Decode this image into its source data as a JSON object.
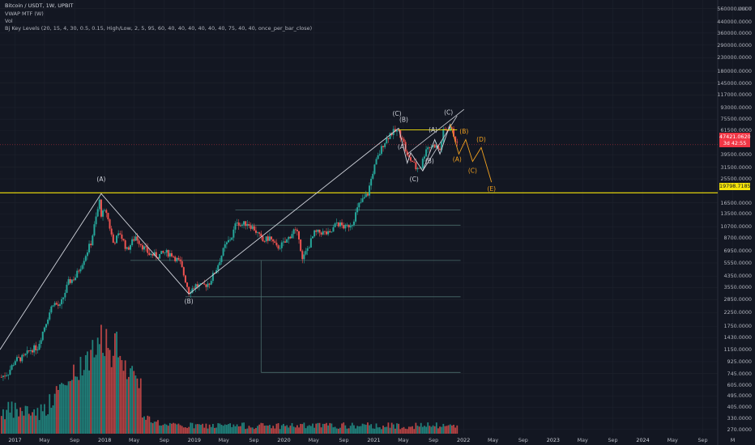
{
  "header": {
    "line1": "Bitcoin / USDT, 1W, UPBIT",
    "line2": "VWAP MTF (W)",
    "line3": "Vol",
    "line4": "Bj Key Levels (20, 15, 4, 30, 0.5, 0.15, High/Low, 2, 5, 95, 60, 40, 40, 40, 40, 40, 40, 75, 40, 40, once_per_bar_close)"
  },
  "y_axis": {
    "currency": "USDT",
    "labels": [
      "560000.0000",
      "440000.0000",
      "360000.0000",
      "290000.0000",
      "230000.0000",
      "180000.0000",
      "145000.0000",
      "117000.0000",
      "93000.0000",
      "75500.0000",
      "61500.0000",
      "39500.0000",
      "31500.0000",
      "25500.0000",
      "16500.0000",
      "13500.0000",
      "10700.0000",
      "8700.0000",
      "6950.0000",
      "5550.0000",
      "4350.0000",
      "3550.0000",
      "2850.0000",
      "2250.0000",
      "1750.0000",
      "1430.0000",
      "1150.0000",
      "925.0000",
      "745.0000",
      "605.0000",
      "495.0000",
      "405.0000",
      "330.0000",
      "270.0000"
    ]
  },
  "price_tag": {
    "price": "47421.0620",
    "countdown": "3d 42:55",
    "color": "#f23645"
  },
  "level_tag": {
    "value": "19798.7185",
    "color": "#f5e50a"
  },
  "x_axis": {
    "labels": [
      {
        "t": "2017",
        "year": true
      },
      {
        "t": "May",
        "year": false
      },
      {
        "t": "Sep",
        "year": false
      },
      {
        "t": "2018",
        "year": true
      },
      {
        "t": "May",
        "year": false
      },
      {
        "t": "Sep",
        "year": false
      },
      {
        "t": "2019",
        "year": true
      },
      {
        "t": "May",
        "year": false
      },
      {
        "t": "Sep",
        "year": false
      },
      {
        "t": "2020",
        "year": true
      },
      {
        "t": "May",
        "year": false
      },
      {
        "t": "Sep",
        "year": false
      },
      {
        "t": "2021",
        "year": true
      },
      {
        "t": "May",
        "year": false
      },
      {
        "t": "Sep",
        "year": false
      },
      {
        "t": "2022",
        "year": true
      },
      {
        "t": "May",
        "year": false
      },
      {
        "t": "Sep",
        "year": false
      },
      {
        "t": "2023",
        "year": true
      },
      {
        "t": "May",
        "year": false
      },
      {
        "t": "Sep",
        "year": false
      },
      {
        "t": "2024",
        "year": true
      },
      {
        "t": "May",
        "year": false
      },
      {
        "t": "Sep",
        "year": false
      },
      {
        "t": "M",
        "year": false
      }
    ]
  },
  "colors": {
    "bull": "#26a69a",
    "bear": "#ef5350",
    "level": "#f5e50a",
    "wave_white": "#d1d4dc",
    "wave_orange": "#f0a020",
    "grid": "#1e222d",
    "fib": "#6a8f8f"
  },
  "wave_labels": {
    "A1": "(A)",
    "B1": "(B)",
    "C_top": "(C)",
    "B_top": "(B)",
    "A_mid": "(A)",
    "C_low": "(C)",
    "B_mid": "(B)",
    "A_top2": "(A)",
    "C_top2": "(C)",
    "projection": [
      "(A)",
      "(B)",
      "(C)",
      "(D)",
      "(E)"
    ]
  },
  "chart_data": {
    "type": "candlestick",
    "title": "Bitcoin / USDT, 1W, UPBIT",
    "y_scale": "log",
    "ylim": [
      250,
      600000
    ],
    "x_range": [
      "2016-11",
      "2024-11"
    ],
    "key_level": 19798.7185,
    "last_price": 47421.062,
    "close_series": [
      {
        "d": "2016-11-07",
        "c": 700
      },
      {
        "d": "2016-12-05",
        "c": 760
      },
      {
        "d": "2017-01-02",
        "c": 950
      },
      {
        "d": "2017-02-06",
        "c": 1000
      },
      {
        "d": "2017-03-06",
        "c": 1150
      },
      {
        "d": "2017-04-03",
        "c": 1200
      },
      {
        "d": "2017-05-01",
        "c": 1750
      },
      {
        "d": "2017-06-05",
        "c": 2700
      },
      {
        "d": "2017-07-03",
        "c": 2500
      },
      {
        "d": "2017-08-07",
        "c": 3900
      },
      {
        "d": "2017-09-04",
        "c": 4300
      },
      {
        "d": "2017-10-02",
        "c": 5600
      },
      {
        "d": "2017-11-06",
        "c": 8000
      },
      {
        "d": "2017-12-11",
        "c": 17000
      },
      {
        "d": "2017-12-18",
        "c": 13500
      },
      {
        "d": "2018-01-08",
        "c": 14000
      },
      {
        "d": "2018-02-05",
        "c": 8000
      },
      {
        "d": "2018-03-05",
        "c": 9500
      },
      {
        "d": "2018-04-02",
        "c": 7000
      },
      {
        "d": "2018-05-07",
        "c": 9000
      },
      {
        "d": "2018-06-04",
        "c": 7500
      },
      {
        "d": "2018-07-02",
        "c": 6500
      },
      {
        "d": "2018-08-06",
        "c": 6300
      },
      {
        "d": "2018-09-03",
        "c": 6700
      },
      {
        "d": "2018-10-01",
        "c": 6500
      },
      {
        "d": "2018-11-05",
        "c": 5500
      },
      {
        "d": "2018-12-10",
        "c": 3300
      },
      {
        "d": "2019-01-07",
        "c": 3700
      },
      {
        "d": "2019-02-04",
        "c": 3600
      },
      {
        "d": "2019-03-04",
        "c": 3900
      },
      {
        "d": "2019-04-01",
        "c": 5000
      },
      {
        "d": "2019-05-06",
        "c": 7500
      },
      {
        "d": "2019-06-03",
        "c": 9000
      },
      {
        "d": "2019-06-24",
        "c": 12000
      },
      {
        "d": "2019-07-08",
        "c": 11000
      },
      {
        "d": "2019-08-05",
        "c": 11500
      },
      {
        "d": "2019-09-02",
        "c": 10300
      },
      {
        "d": "2019-10-07",
        "c": 8200
      },
      {
        "d": "2019-11-04",
        "c": 8800
      },
      {
        "d": "2019-12-02",
        "c": 7300
      },
      {
        "d": "2020-01-06",
        "c": 8000
      },
      {
        "d": "2020-02-10",
        "c": 10000
      },
      {
        "d": "2020-03-02",
        "c": 9000
      },
      {
        "d": "2020-03-16",
        "c": 5800
      },
      {
        "d": "2020-04-06",
        "c": 7200
      },
      {
        "d": "2020-05-04",
        "c": 9500
      },
      {
        "d": "2020-06-01",
        "c": 9700
      },
      {
        "d": "2020-07-06",
        "c": 9300
      },
      {
        "d": "2020-08-03",
        "c": 11500
      },
      {
        "d": "2020-09-07",
        "c": 10500
      },
      {
        "d": "2020-10-05",
        "c": 11500
      },
      {
        "d": "2020-11-02",
        "c": 16000
      },
      {
        "d": "2020-12-07",
        "c": 19500
      },
      {
        "d": "2020-12-28",
        "c": 29000
      },
      {
        "d": "2021-01-11",
        "c": 35000
      },
      {
        "d": "2021-02-08",
        "c": 48000
      },
      {
        "d": "2021-03-08",
        "c": 58000
      },
      {
        "d": "2021-04-05",
        "c": 61000
      },
      {
        "d": "2021-04-26",
        "c": 55000
      },
      {
        "d": "2021-05-17",
        "c": 38000
      },
      {
        "d": "2021-06-07",
        "c": 35000
      },
      {
        "d": "2021-06-21",
        "c": 31000
      },
      {
        "d": "2021-07-12",
        "c": 32000
      },
      {
        "d": "2021-08-02",
        "c": 45000
      },
      {
        "d": "2021-09-06",
        "c": 47000
      },
      {
        "d": "2021-09-27",
        "c": 43000
      },
      {
        "d": "2021-10-11",
        "c": 60000
      },
      {
        "d": "2021-11-08",
        "c": 65000
      },
      {
        "d": "2021-11-22",
        "c": 57000
      },
      {
        "d": "2021-12-06",
        "c": 47421
      }
    ],
    "volume_note": "weekly volume histogram, peak around 2017-12 and 2018-01",
    "horizontal_levels": [
      19798.7185,
      14500,
      11000,
      5800,
      3000,
      760
    ]
  }
}
